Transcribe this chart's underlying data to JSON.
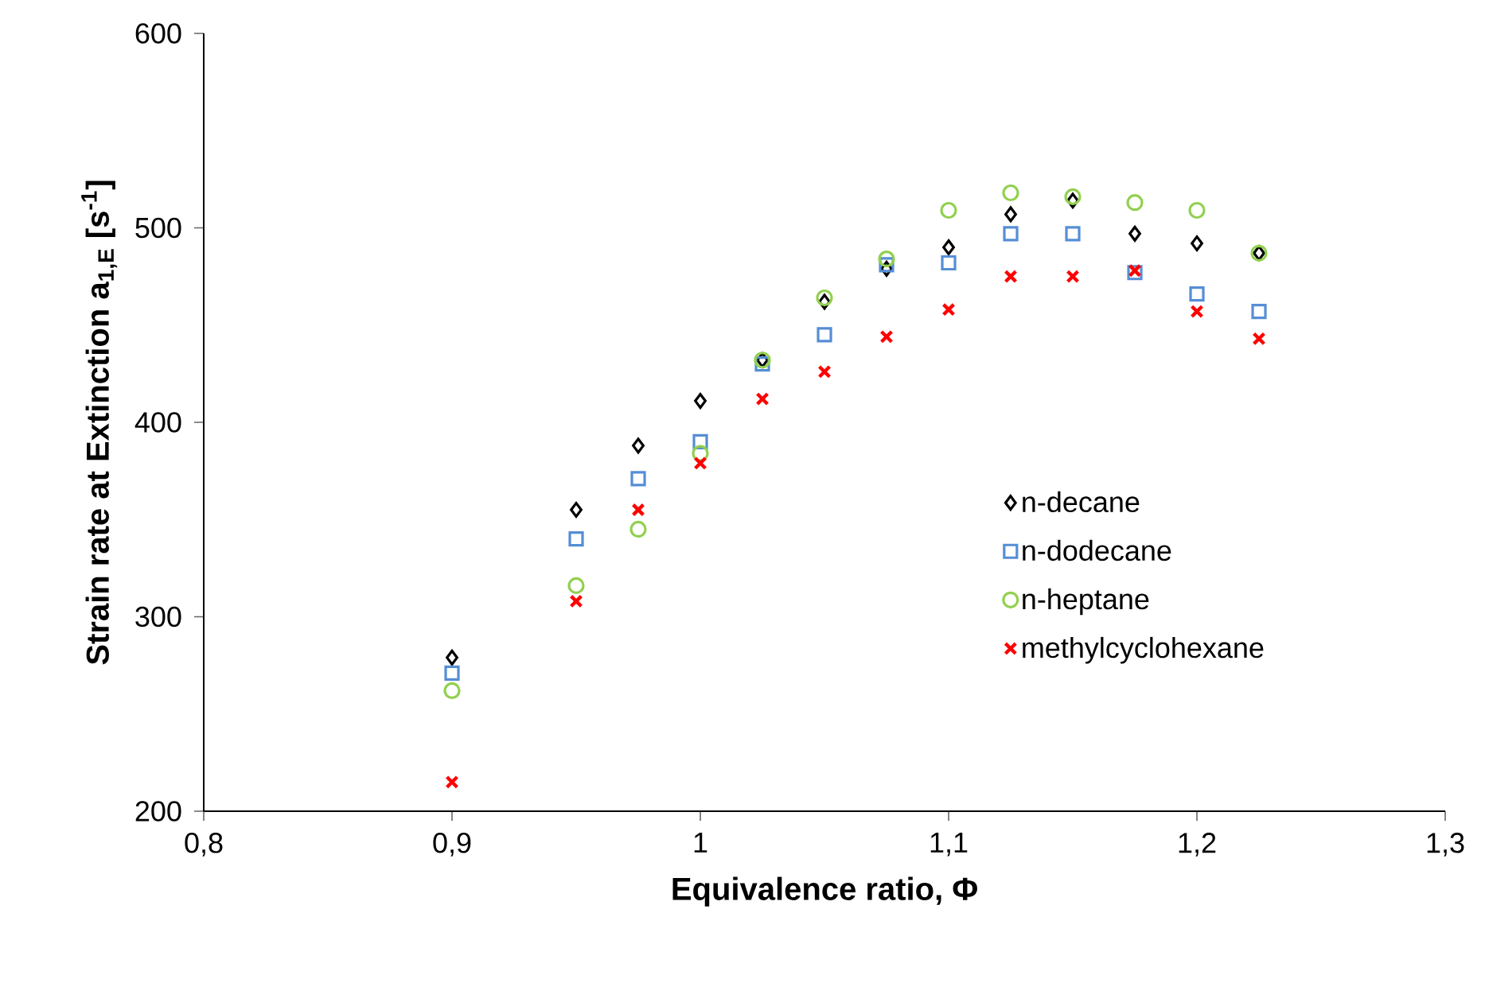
{
  "chart_data": {
    "type": "scatter",
    "xlabel": "Equivalence ratio, Φ",
    "ylabel": "Strain rate at Extinction a$_{1,E}$ [s$^{-1}$]",
    "x": [
      0.9,
      0.95,
      0.975,
      1.0,
      1.025,
      1.05,
      1.075,
      1.1,
      1.125,
      1.15,
      1.175,
      1.2,
      1.225
    ],
    "series": [
      {
        "name": "n-decane",
        "color": "#000000",
        "marker": "diamond",
        "values": [
          279,
          355,
          388,
          411,
          432,
          462,
          479,
          490,
          507,
          514,
          497,
          492,
          487
        ]
      },
      {
        "name": "n-dodecane",
        "color": "#558ed5",
        "marker": "square",
        "values": [
          271,
          340,
          371,
          390,
          430,
          445,
          481,
          482,
          497,
          497,
          477,
          466,
          457
        ]
      },
      {
        "name": "n-heptane",
        "color": "#92d050",
        "marker": "circle",
        "values": [
          262,
          316,
          345,
          384,
          432,
          464,
          484,
          509,
          518,
          516,
          513,
          509,
          487
        ]
      },
      {
        "name": "methylcyclohexane",
        "color": "#ff0000",
        "marker": "cross",
        "values": [
          215,
          308,
          355,
          379,
          412,
          426,
          444,
          458,
          475,
          475,
          478,
          457,
          443
        ]
      }
    ],
    "xlim": [
      0.8,
      1.3
    ],
    "ylim": [
      200,
      600
    ],
    "xticks": [
      {
        "value": 0.8,
        "label": "0,8"
      },
      {
        "value": 0.9,
        "label": "0,9"
      },
      {
        "value": 1.0,
        "label": "1"
      },
      {
        "value": 1.1,
        "label": "1,1"
      },
      {
        "value": 1.2,
        "label": "1,2"
      },
      {
        "value": 1.3,
        "label": "1,3"
      }
    ],
    "yticks": [
      200,
      300,
      400,
      500,
      600
    ],
    "grid": false,
    "legend": "right"
  }
}
